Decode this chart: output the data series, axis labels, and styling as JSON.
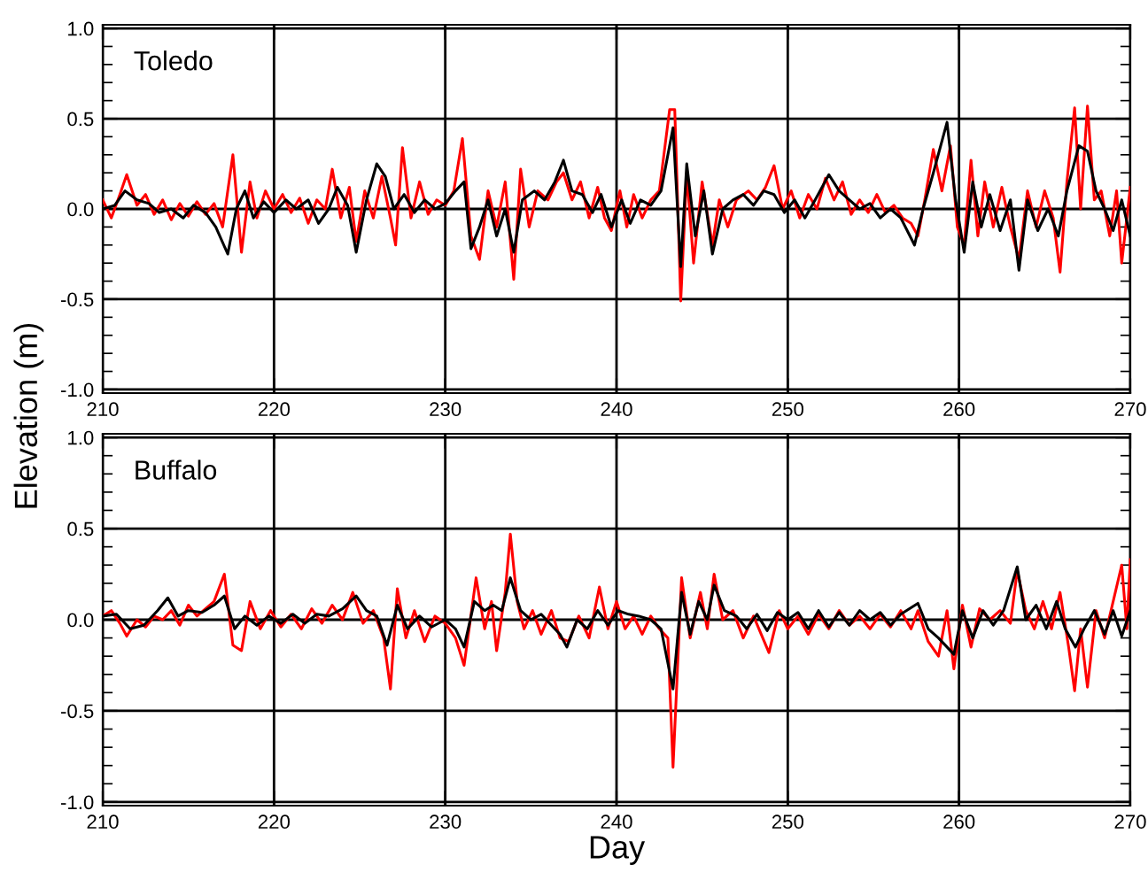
{
  "chart_data": [
    {
      "type": "line",
      "ylabel": "Elevation (m)",
      "annotations": [
        "Toledo"
      ],
      "xlim": [
        210,
        270
      ],
      "xticks": [
        210,
        220,
        230,
        240,
        250,
        260,
        270
      ],
      "ylim": [
        -1.02,
        1.02
      ],
      "yticks": [
        {
          "value": -1,
          "label": "-1.0"
        },
        {
          "value": -0.5,
          "label": "-0.5"
        },
        {
          "value": 0,
          "label": "0.0"
        },
        {
          "value": 0.5,
          "label": "0.5"
        },
        {
          "value": 1,
          "label": "1.0"
        }
      ],
      "grid": true,
      "legend": false,
      "line_style": "solid",
      "marker": "none",
      "series": [
        {
          "color": "#ff0000",
          "x": [
            210,
            210.5,
            211,
            211.4,
            212,
            212.5,
            213,
            213.5,
            214,
            214.5,
            215,
            215.5,
            216,
            216.5,
            217,
            217.6,
            218.1,
            218.6,
            219,
            219.5,
            220,
            220.5,
            221,
            221.5,
            222,
            222.5,
            223,
            223.4,
            223.9,
            224.4,
            224.8,
            225.3,
            225.8,
            226.3,
            226.8,
            227.1,
            227.5,
            228,
            228.5,
            229,
            229.5,
            230,
            230.5,
            231,
            231.5,
            232,
            232.5,
            233,
            233.5,
            234,
            234.4,
            234.9,
            235.4,
            236,
            236.5,
            236.9,
            237.4,
            237.9,
            238.4,
            238.9,
            239.3,
            239.7,
            240.2,
            240.6,
            241,
            241.5,
            242,
            242.5,
            243.1,
            243.4,
            243.75,
            244.1,
            244.5,
            245,
            245.6,
            246,
            246.5,
            247,
            247.7,
            248.2,
            248.7,
            249.2,
            249.7,
            250.2,
            250.7,
            251.2,
            251.7,
            252.2,
            252.7,
            253.2,
            253.7,
            254.2,
            254.7,
            255.2,
            255.7,
            256.2,
            256.7,
            257.2,
            257.6,
            258,
            258.5,
            259,
            259.5,
            259.9,
            260.3,
            260.7,
            261.1,
            261.5,
            262,
            262.5,
            263,
            263.5,
            264,
            264.5,
            265,
            265.5,
            265.9,
            266.3,
            266.75,
            267.1,
            267.5,
            267.9,
            268.3,
            268.8,
            269.2,
            269.5,
            270
          ],
          "values": [
            0.05,
            -0.05,
            0.08,
            0.19,
            0.02,
            0.08,
            -0.03,
            0.05,
            -0.06,
            0.03,
            -0.04,
            0.04,
            -0.03,
            0.03,
            -0.1,
            0.3,
            -0.24,
            0.15,
            -0.05,
            0.1,
            0.0,
            0.08,
            -0.02,
            0.06,
            -0.08,
            0.05,
            0.0,
            0.22,
            -0.05,
            0.12,
            -0.18,
            0.1,
            -0.05,
            0.18,
            -0.05,
            -0.2,
            0.34,
            -0.05,
            0.15,
            -0.03,
            0.05,
            0.02,
            0.1,
            0.39,
            -0.15,
            -0.28,
            0.1,
            -0.1,
            0.15,
            -0.39,
            0.22,
            -0.1,
            0.1,
            0.05,
            0.15,
            0.2,
            0.05,
            0.15,
            -0.05,
            0.12,
            -0.05,
            -0.12,
            0.1,
            -0.1,
            0.08,
            -0.05,
            0.05,
            0.1,
            0.55,
            0.55,
            -0.51,
            0.2,
            -0.3,
            0.15,
            -0.2,
            0.05,
            -0.1,
            0.05,
            0.1,
            0.05,
            0.12,
            0.24,
            0.0,
            0.1,
            -0.05,
            0.08,
            0.0,
            0.17,
            0.05,
            0.15,
            -0.03,
            0.05,
            -0.02,
            0.08,
            -0.02,
            0.02,
            -0.05,
            -0.08,
            -0.15,
            0.05,
            0.33,
            0.1,
            0.35,
            -0.1,
            -0.2,
            0.27,
            -0.15,
            0.15,
            -0.1,
            0.12,
            -0.1,
            -0.28,
            0.1,
            -0.1,
            0.1,
            -0.05,
            -0.35,
            0.15,
            0.56,
            0.0,
            0.57,
            0.05,
            0.1,
            -0.15,
            0.1,
            -0.3,
            0.12
          ]
        },
        {
          "color": "#000000",
          "x": [
            210,
            210.7,
            211.3,
            212,
            212.7,
            213.3,
            214,
            214.7,
            215.3,
            216,
            216.6,
            217.3,
            217.8,
            218.3,
            218.8,
            219.4,
            220,
            220.7,
            221.3,
            222,
            222.6,
            223.2,
            223.7,
            224.3,
            224.8,
            225.4,
            226.0,
            226.5,
            227,
            227.6,
            228.2,
            228.8,
            229.4,
            230,
            230.6,
            231.1,
            231.5,
            232,
            232.5,
            233,
            233.5,
            234,
            234.5,
            235.2,
            235.8,
            236.4,
            236.9,
            237.4,
            238,
            238.6,
            239.1,
            239.7,
            240.3,
            240.8,
            241.4,
            242,
            242.6,
            243.3,
            243.75,
            244.1,
            244.6,
            245.1,
            245.6,
            246.2,
            246.8,
            247.4,
            248,
            248.6,
            249.2,
            249.8,
            250.4,
            251,
            251.6,
            252.4,
            253,
            253.6,
            254.2,
            254.8,
            255.4,
            256,
            256.6,
            257.4,
            257.9,
            258.5,
            259.3,
            259.8,
            260.3,
            260.8,
            261.3,
            261.8,
            262.4,
            263,
            263.5,
            264,
            264.6,
            265.2,
            265.8,
            266.3,
            267,
            267.5,
            268,
            268.5,
            269,
            269.5,
            270
          ],
          "values": [
            0.0,
            0.02,
            0.1,
            0.05,
            0.03,
            -0.02,
            0.0,
            -0.05,
            0.02,
            -0.02,
            -0.1,
            -0.25,
            0.0,
            0.1,
            -0.05,
            0.04,
            -0.02,
            0.05,
            0.0,
            0.05,
            -0.08,
            0.0,
            0.12,
            0.02,
            -0.24,
            0.05,
            0.25,
            0.18,
            0.0,
            0.08,
            -0.02,
            0.05,
            0.0,
            0.03,
            0.1,
            0.15,
            -0.22,
            -0.1,
            0.05,
            -0.15,
            0.0,
            -0.24,
            0.05,
            0.1,
            0.05,
            0.15,
            0.27,
            0.1,
            0.08,
            -0.02,
            0.08,
            -0.1,
            0.05,
            -0.08,
            0.05,
            0.02,
            0.1,
            0.45,
            -0.32,
            0.25,
            -0.15,
            0.1,
            -0.25,
            0.0,
            0.05,
            0.08,
            0.02,
            0.1,
            0.08,
            -0.02,
            0.05,
            -0.05,
            0.05,
            0.19,
            0.1,
            0.05,
            0.0,
            0.03,
            -0.05,
            0.0,
            -0.05,
            -0.2,
            0.0,
            0.2,
            0.48,
            0.05,
            -0.24,
            0.15,
            -0.1,
            0.08,
            -0.12,
            0.05,
            -0.34,
            0.05,
            -0.12,
            0.0,
            -0.15,
            0.1,
            0.35,
            0.32,
            0.1,
            0.0,
            -0.12,
            0.05,
            -0.15
          ]
        }
      ]
    },
    {
      "type": "line",
      "xlabel": "Day",
      "annotations": [
        "Buffalo"
      ],
      "xlim": [
        210,
        270
      ],
      "xticks": [
        210,
        220,
        230,
        240,
        250,
        260,
        270
      ],
      "ylim": [
        -1.02,
        1.02
      ],
      "yticks": [
        {
          "value": -1,
          "label": "-1.0"
        },
        {
          "value": -0.5,
          "label": "-0.5"
        },
        {
          "value": 0,
          "label": "0.0"
        },
        {
          "value": 0.5,
          "label": "0.5"
        },
        {
          "value": 1,
          "label": "1.0"
        }
      ],
      "grid": true,
      "legend": false,
      "line_style": "solid",
      "marker": "none",
      "series": [
        {
          "color": "#ff0000",
          "x": [
            210,
            210.5,
            211,
            211.4,
            212,
            212.5,
            213,
            213.5,
            214,
            214.5,
            215,
            215.5,
            216,
            216.5,
            217.1,
            217.6,
            218.1,
            218.6,
            219.2,
            219.8,
            220.4,
            221,
            221.6,
            222.2,
            222.8,
            223.4,
            224,
            224.6,
            225.2,
            225.8,
            226.4,
            226.8,
            227.2,
            227.7,
            228.2,
            228.8,
            229.4,
            230,
            230.6,
            231.1,
            231.8,
            232.3,
            232.7,
            233,
            233.5,
            233.8,
            234.2,
            234.6,
            235.1,
            235.6,
            236.2,
            236.7,
            237.2,
            237.8,
            238.4,
            239,
            239.5,
            240,
            240.5,
            241,
            241.5,
            242,
            242.5,
            243,
            243.3,
            243.8,
            244.3,
            244.9,
            245.3,
            245.7,
            246.2,
            246.8,
            247.4,
            248,
            248.9,
            249.5,
            250,
            250.6,
            251.2,
            251.8,
            252.4,
            253,
            253.6,
            254.2,
            254.8,
            255.4,
            256,
            256.6,
            257.2,
            257.6,
            258.2,
            258.8,
            259.3,
            259.7,
            260.2,
            260.7,
            261.2,
            261.8,
            262.4,
            263,
            263.4,
            263.9,
            264.4,
            264.9,
            265.4,
            265.9,
            266.4,
            266.75,
            267.1,
            267.5,
            268,
            268.5,
            269,
            269.5,
            269.8,
            270
          ],
          "values": [
            0.02,
            0.05,
            -0.02,
            -0.09,
            0.0,
            -0.04,
            0.02,
            0.0,
            0.05,
            -0.03,
            0.08,
            0.02,
            0.06,
            0.1,
            0.25,
            -0.14,
            -0.17,
            0.1,
            -0.05,
            0.05,
            -0.04,
            0.03,
            -0.05,
            0.06,
            -0.02,
            0.08,
            0.0,
            0.15,
            -0.02,
            0.05,
            -0.1,
            -0.38,
            0.17,
            -0.1,
            0.05,
            -0.12,
            0.02,
            -0.02,
            -0.1,
            -0.25,
            0.23,
            -0.05,
            0.1,
            -0.17,
            0.15,
            0.47,
            0.1,
            -0.05,
            0.05,
            -0.08,
            0.05,
            -0.1,
            -0.12,
            0.02,
            -0.1,
            0.18,
            -0.05,
            0.1,
            -0.05,
            0.02,
            -0.08,
            0.02,
            -0.05,
            -0.1,
            -0.81,
            0.23,
            -0.1,
            0.15,
            -0.05,
            0.25,
            0.0,
            0.05,
            -0.1,
            0.02,
            -0.18,
            0.05,
            -0.05,
            0.02,
            -0.08,
            0.03,
            -0.05,
            0.05,
            -0.03,
            0.02,
            -0.05,
            0.03,
            -0.04,
            0.05,
            -0.05,
            0.05,
            -0.12,
            -0.2,
            0.05,
            -0.27,
            0.08,
            -0.15,
            0.06,
            0.0,
            0.05,
            -0.02,
            0.27,
            0.05,
            -0.05,
            0.1,
            -0.05,
            0.15,
            -0.15,
            -0.39,
            -0.05,
            -0.37,
            0.05,
            -0.1,
            0.1,
            0.3,
            -0.05,
            0.33
          ]
        },
        {
          "color": "#000000",
          "x": [
            210,
            210.8,
            211.6,
            212.4,
            213.2,
            213.8,
            214.4,
            215,
            215.8,
            216.5,
            217.1,
            217.7,
            218.3,
            219,
            219.7,
            220.4,
            221.1,
            221.8,
            222.5,
            223.2,
            224,
            224.8,
            225.4,
            226,
            226.6,
            227.2,
            227.8,
            228.5,
            229.2,
            230,
            230.6,
            231.1,
            231.7,
            232.3,
            232.8,
            233.3,
            233.8,
            234.4,
            235,
            235.6,
            236.2,
            236.7,
            237.1,
            237.7,
            238.3,
            238.9,
            239.5,
            240.1,
            240.7,
            241.3,
            242,
            242.6,
            243.3,
            243.8,
            244.3,
            244.8,
            245.3,
            245.7,
            246.3,
            247,
            247.6,
            248.2,
            248.8,
            249.4,
            250,
            250.6,
            251.2,
            251.8,
            252.4,
            253,
            253.6,
            254.2,
            254.8,
            255.4,
            256,
            256.6,
            257.6,
            258.2,
            258.8,
            259.7,
            260.2,
            260.8,
            261.4,
            262,
            262.6,
            263.4,
            263.9,
            264.5,
            265.1,
            265.7,
            266.2,
            266.8,
            267.3,
            267.9,
            268.5,
            269,
            269.5,
            270
          ],
          "values": [
            0.02,
            0.03,
            -0.05,
            -0.03,
            0.05,
            0.12,
            0.02,
            0.05,
            0.04,
            0.08,
            0.13,
            -0.05,
            0.02,
            -0.03,
            0.02,
            -0.02,
            0.03,
            -0.02,
            0.03,
            0.02,
            0.06,
            0.13,
            0.05,
            0.02,
            -0.14,
            0.08,
            -0.05,
            0.02,
            -0.04,
            0.0,
            -0.05,
            -0.15,
            0.1,
            0.05,
            0.08,
            0.05,
            0.23,
            0.05,
            0.0,
            0.03,
            -0.03,
            -0.08,
            -0.15,
            0.0,
            -0.05,
            0.05,
            -0.03,
            0.05,
            0.03,
            0.02,
            0.0,
            -0.05,
            -0.38,
            0.15,
            -0.08,
            0.1,
            0.0,
            0.19,
            0.05,
            0.02,
            -0.05,
            0.03,
            -0.06,
            0.04,
            0.0,
            0.04,
            -0.05,
            0.05,
            -0.04,
            0.04,
            -0.03,
            0.05,
            0.0,
            0.04,
            -0.03,
            0.03,
            0.09,
            -0.05,
            -0.1,
            -0.19,
            0.05,
            -0.1,
            0.05,
            -0.03,
            0.05,
            0.29,
            0.0,
            0.08,
            -0.05,
            0.1,
            -0.05,
            -0.15,
            -0.05,
            0.05,
            -0.08,
            0.05,
            -0.09,
            0.05
          ]
        }
      ]
    }
  ]
}
